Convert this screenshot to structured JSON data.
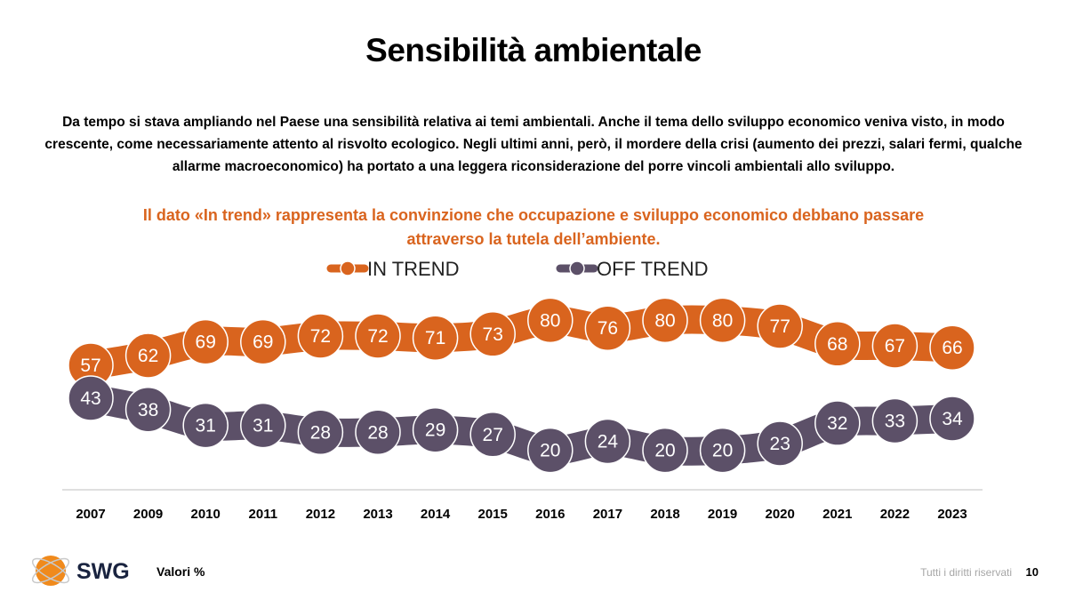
{
  "title": "Sensibilità ambientale",
  "intro": "Da tempo si stava ampliando nel Paese una sensibilità relativa ai temi ambientali. Anche il tema dello sviluppo economico veniva visto, in modo crescente, come necessariamente attento al risvolto ecologico. Negli ultimi anni, però, il mordere della crisi (aumento dei prezzi, salari fermi, qualche allarme macroeconomico) ha portato a una leggera riconsiderazione del porre vincoli ambientali allo sviluppo.",
  "subtitle": "Il dato «In trend» rappresenta la convinzione che occupazione e sviluppo economico debbano passare attraverso la tutela dell’ambiente.",
  "chart_data": {
    "type": "line",
    "categories": [
      "2007",
      "2009",
      "2010",
      "2011",
      "2012",
      "2013",
      "2014",
      "2015",
      "2016",
      "2017",
      "2018",
      "2019",
      "2020",
      "2021",
      "2022",
      "2023"
    ],
    "series": [
      {
        "name": "IN TREND",
        "color": "#d9641e",
        "values": [
          57,
          62,
          69,
          69,
          72,
          72,
          71,
          73,
          80,
          76,
          80,
          80,
          77,
          68,
          67,
          66
        ]
      },
      {
        "name": "OFF TREND",
        "color": "#5c5068",
        "values": [
          43,
          38,
          31,
          31,
          28,
          28,
          29,
          27,
          20,
          24,
          20,
          20,
          23,
          32,
          33,
          34
        ]
      }
    ],
    "legend_position": "top-center",
    "grid": false
  },
  "footer": {
    "logo_text": "SWG",
    "note": "Valori %",
    "rights": "Tutti i diritti riservati",
    "page": "10"
  },
  "colors": {
    "accent": "#d9641e",
    "secondary": "#5c5068",
    "logo": "#f08a1c"
  }
}
